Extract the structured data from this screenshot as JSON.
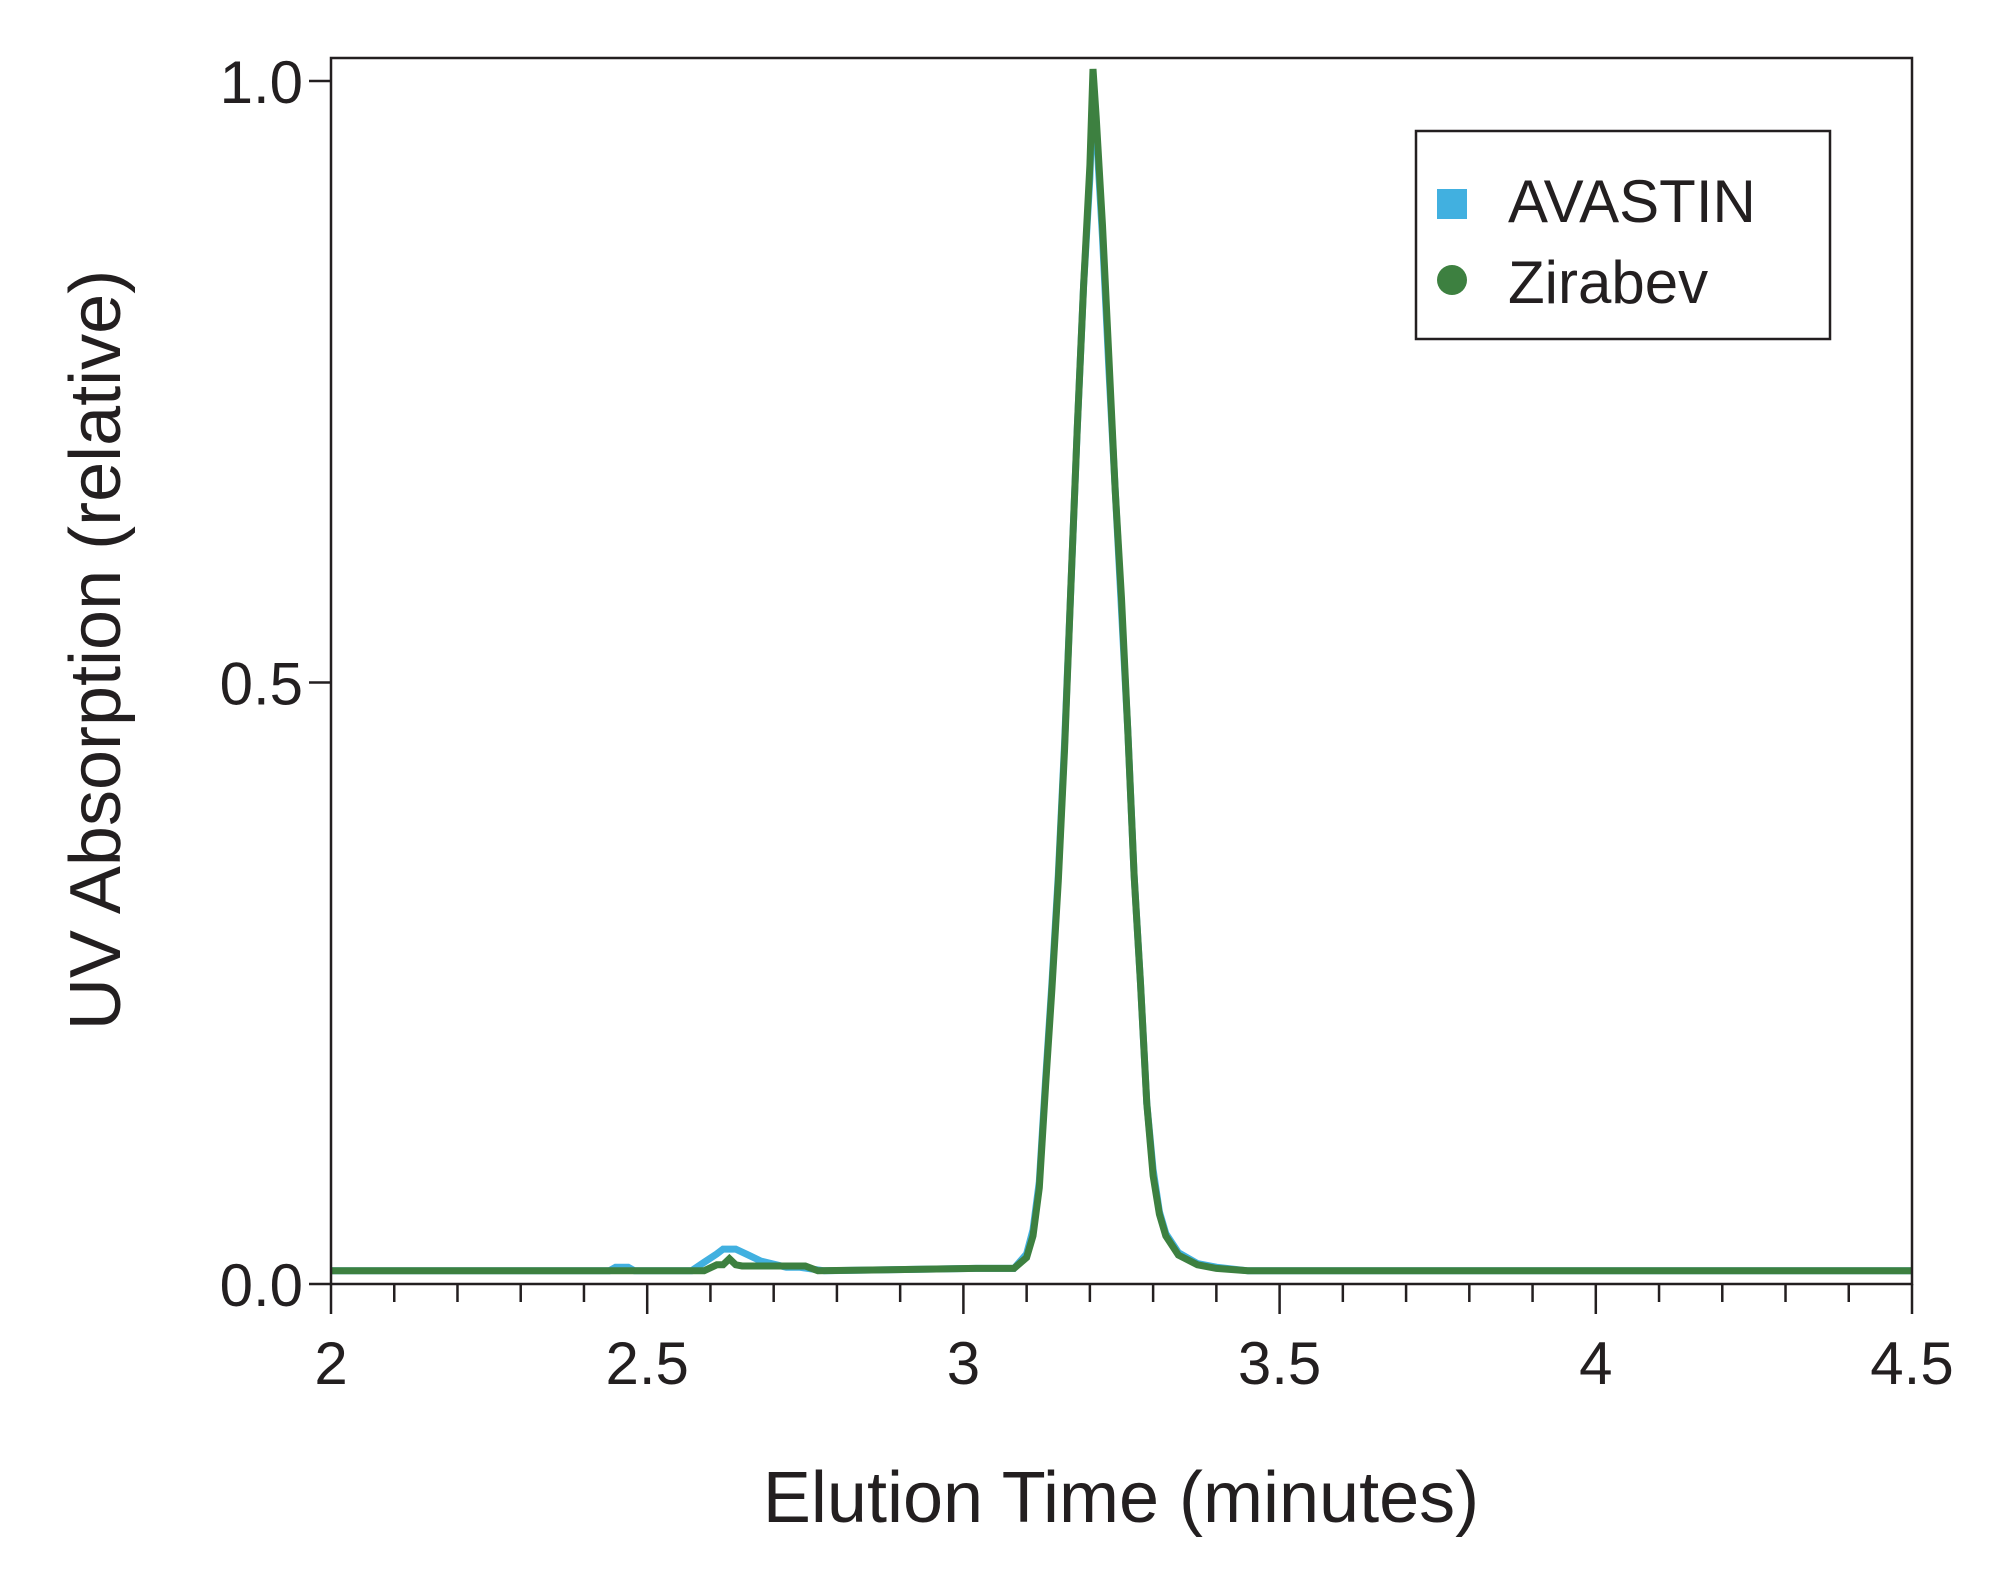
{
  "chart_data": {
    "type": "line",
    "title": "",
    "xlabel": "Elution Time (minutes)",
    "ylabel": "UV Absorption (relative)",
    "xlim": [
      2,
      4.5
    ],
    "ylim": [
      0,
      1.02
    ],
    "xticks": [
      "2",
      "2.5",
      "3",
      "3.5",
      "4",
      "4.5"
    ],
    "xtick_values": [
      2,
      2.5,
      3,
      3.5,
      4,
      4.5
    ],
    "xminor_step": 0.1,
    "yticks": [
      "0.0",
      "0.5",
      "1.0"
    ],
    "ytick_values": [
      0,
      0.5,
      1.0
    ],
    "grid": false,
    "legend_position": "top-right",
    "series": [
      {
        "name": "AVASTIN",
        "color": "#41b0e0",
        "marker": "square",
        "x": [
          2.0,
          2.44,
          2.45,
          2.47,
          2.48,
          2.57,
          2.59,
          2.61,
          2.62,
          2.64,
          2.66,
          2.68,
          2.72,
          2.74,
          2.78,
          3.02,
          3.08,
          3.1,
          3.11,
          3.12,
          3.13,
          3.14,
          3.15,
          3.16,
          3.17,
          3.18,
          3.19,
          3.2,
          3.205,
          3.21,
          3.22,
          3.23,
          3.24,
          3.25,
          3.26,
          3.27,
          3.28,
          3.29,
          3.3,
          3.31,
          3.32,
          3.34,
          3.37,
          3.4,
          3.45,
          4.5
        ],
        "y": [
          0.011,
          0.011,
          0.014,
          0.014,
          0.011,
          0.011,
          0.018,
          0.025,
          0.029,
          0.029,
          0.024,
          0.019,
          0.014,
          0.014,
          0.011,
          0.013,
          0.013,
          0.025,
          0.045,
          0.085,
          0.17,
          0.25,
          0.34,
          0.45,
          0.58,
          0.71,
          0.83,
          0.92,
          1.0,
          0.96,
          0.87,
          0.76,
          0.66,
          0.56,
          0.46,
          0.34,
          0.25,
          0.15,
          0.095,
          0.06,
          0.042,
          0.026,
          0.017,
          0.014,
          0.011,
          0.011
        ]
      },
      {
        "name": "Zirabev",
        "color": "#3d8040",
        "marker": "circle",
        "x": [
          2.0,
          2.59,
          2.61,
          2.62,
          2.63,
          2.64,
          2.65,
          2.75,
          2.77,
          3.02,
          3.08,
          3.1,
          3.11,
          3.12,
          3.13,
          3.14,
          3.15,
          3.16,
          3.17,
          3.18,
          3.19,
          3.2,
          3.205,
          3.21,
          3.22,
          3.23,
          3.24,
          3.25,
          3.26,
          3.27,
          3.28,
          3.29,
          3.3,
          3.31,
          3.32,
          3.34,
          3.37,
          3.4,
          3.45,
          4.5
        ],
        "y": [
          0.011,
          0.011,
          0.016,
          0.016,
          0.021,
          0.016,
          0.015,
          0.015,
          0.011,
          0.013,
          0.013,
          0.022,
          0.04,
          0.08,
          0.165,
          0.245,
          0.335,
          0.445,
          0.58,
          0.71,
          0.83,
          0.93,
          1.01,
          0.97,
          0.88,
          0.77,
          0.66,
          0.57,
          0.46,
          0.34,
          0.25,
          0.15,
          0.09,
          0.058,
          0.04,
          0.024,
          0.016,
          0.013,
          0.011,
          0.011
        ]
      }
    ]
  }
}
